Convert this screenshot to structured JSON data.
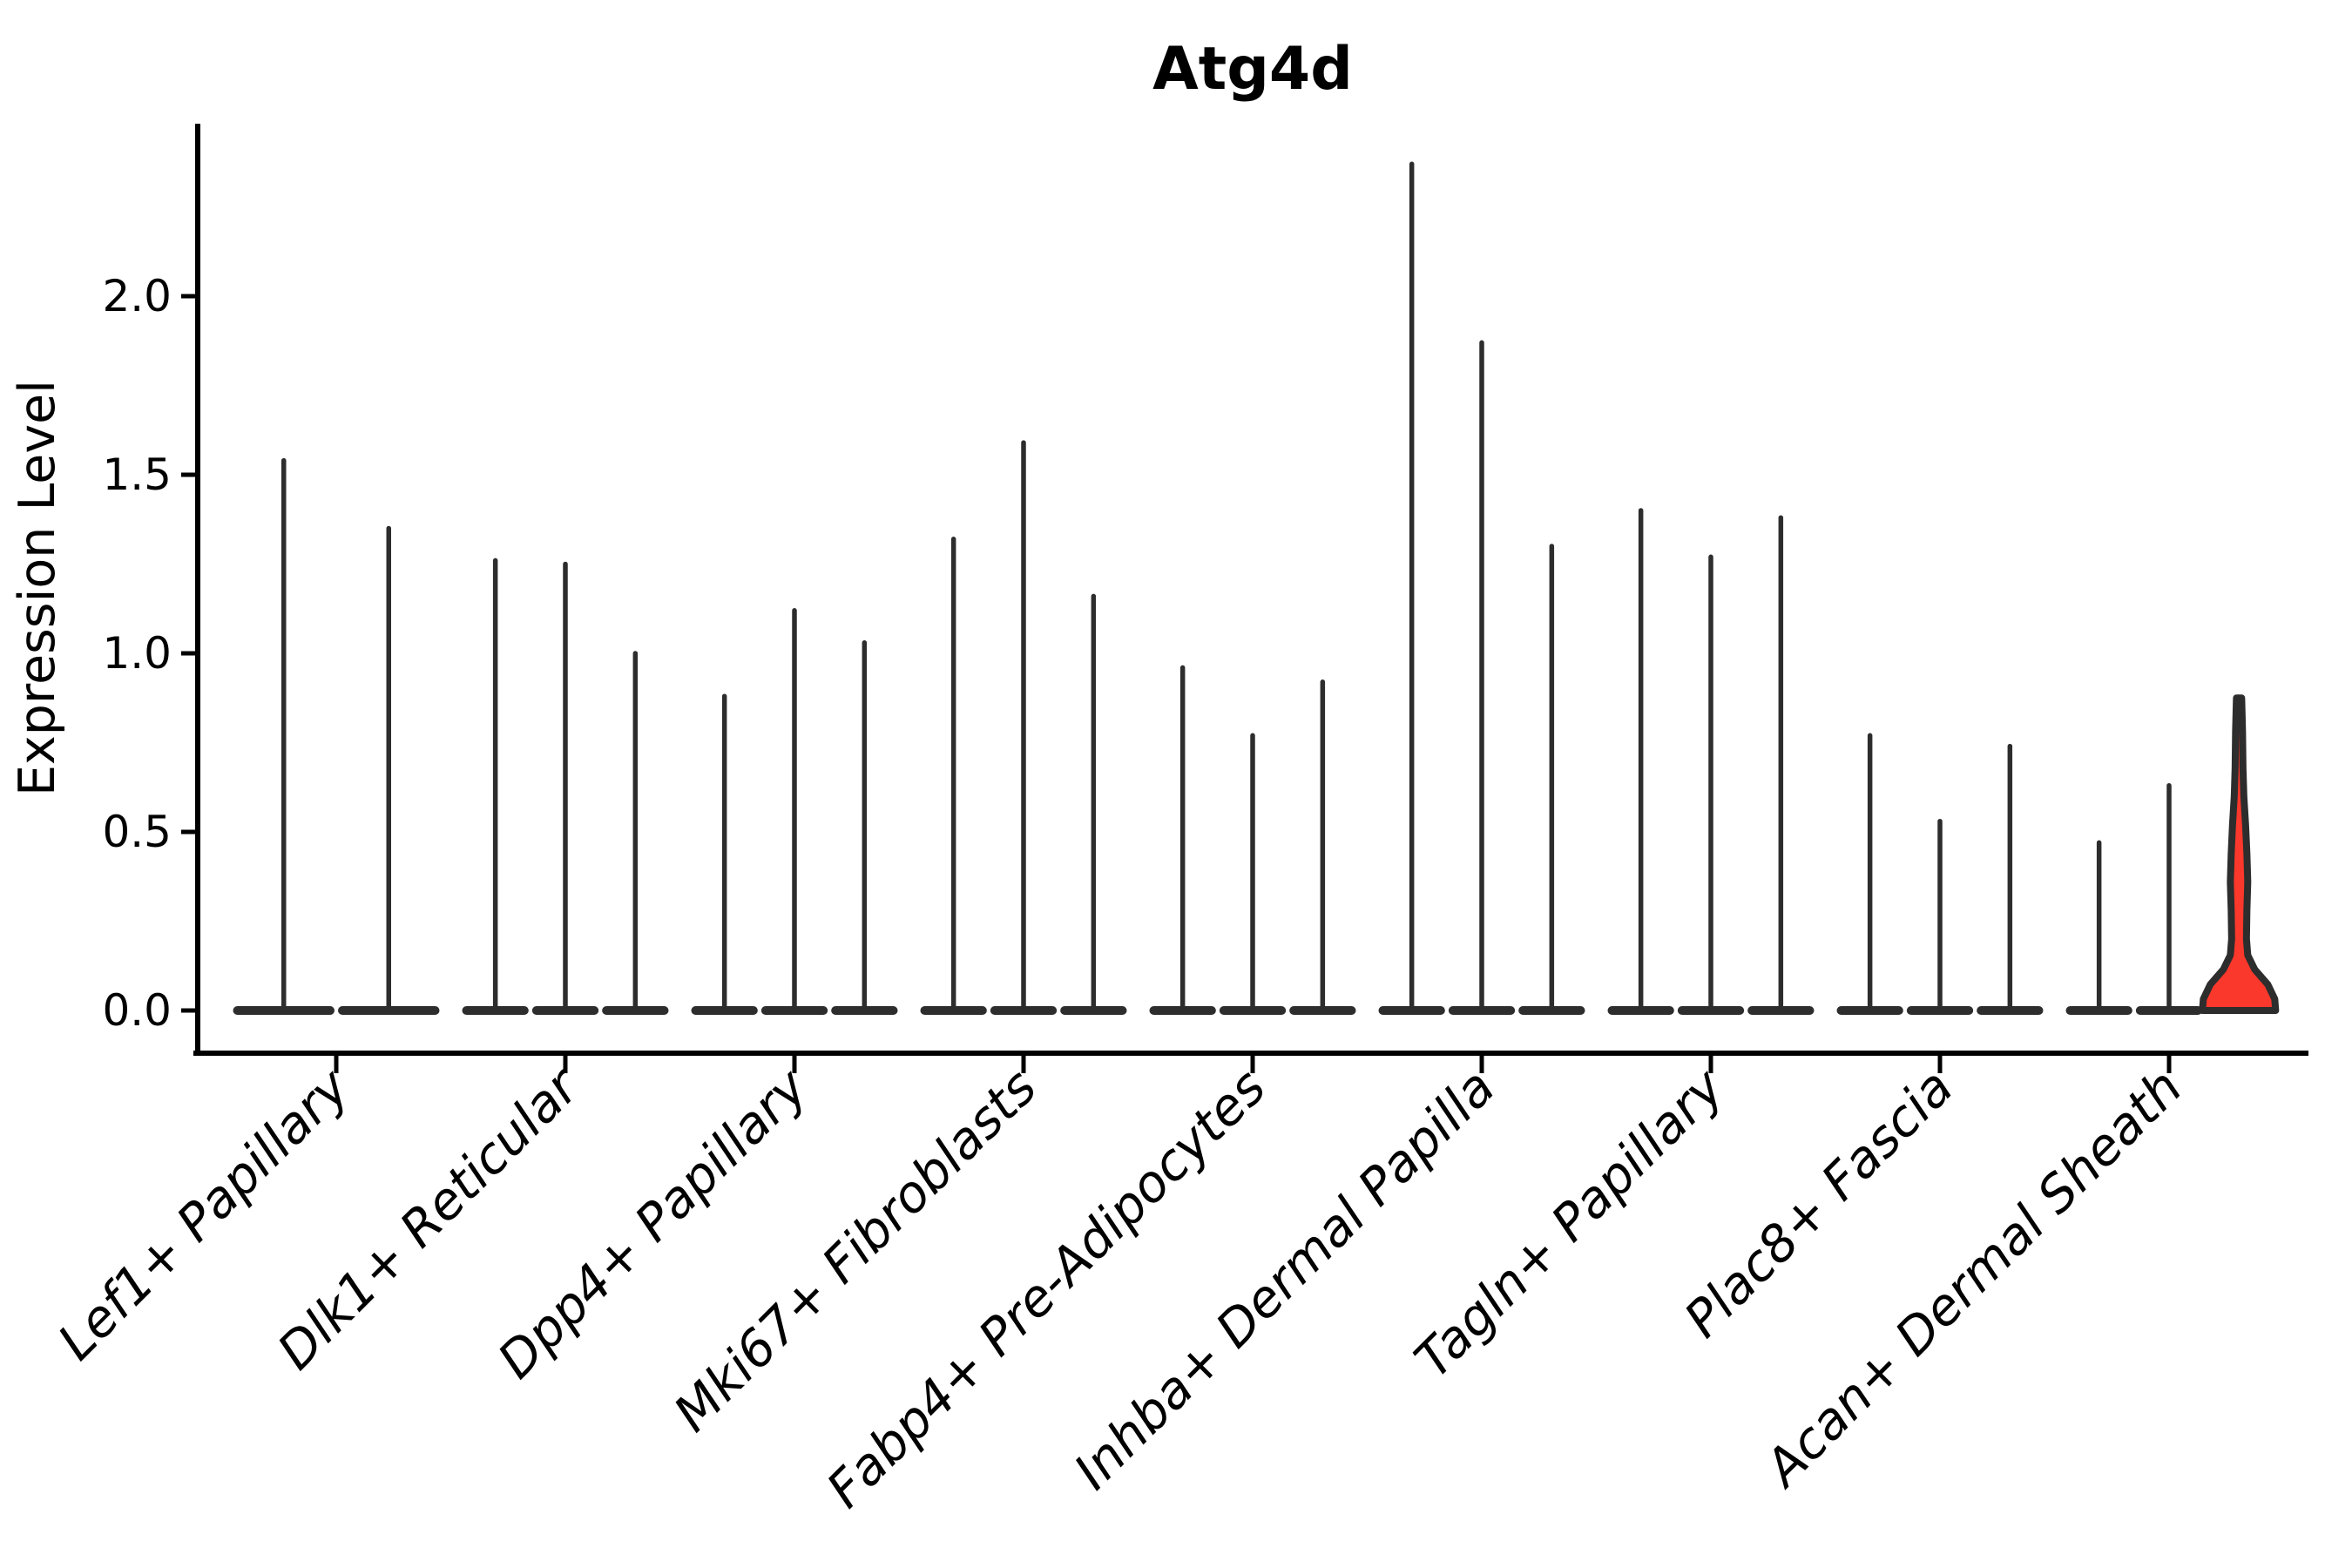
{
  "chart_data": {
    "type": "violin",
    "title": "Atg4d",
    "xlabel": "",
    "ylabel": "Expression Level",
    "ytick_labels": [
      "0.0",
      "0.5",
      "1.0",
      "1.5",
      "2.0"
    ],
    "ytick_values": [
      0.0,
      0.5,
      1.0,
      1.5,
      2.0
    ],
    "ylim": [
      0.0,
      2.49
    ],
    "grid": "off",
    "legend": "none",
    "categories": [
      "Lef1+ Papillary",
      "Dlk1+ Reticular",
      "Dpp4+ Papillary",
      "Mki67+ Fibroblasts",
      "Fabp4+ Pre-Adipocytes",
      "Inhba+ Dermal Papilla",
      "Tagln+ Papillary",
      "Plac8+ Fascia",
      "Acan+ Dermal Sheath"
    ],
    "groups": [
      {
        "category": "Lef1+ Papillary",
        "violin_max_values": [
          1.54,
          1.35
        ]
      },
      {
        "category": "Dlk1+ Reticular",
        "violin_max_values": [
          1.26,
          1.25,
          1.0
        ]
      },
      {
        "category": "Dpp4+ Papillary",
        "violin_max_values": [
          0.88,
          1.12,
          1.03
        ]
      },
      {
        "category": "Mki67+ Fibroblasts",
        "violin_max_values": [
          1.32,
          1.59,
          1.16
        ]
      },
      {
        "category": "Fabp4+ Pre-Adipocytes",
        "violin_max_values": [
          0.96,
          0.77,
          0.92
        ]
      },
      {
        "category": "Inhba+ Dermal Papilla",
        "violin_max_values": [
          2.37,
          1.87,
          1.3
        ]
      },
      {
        "category": "Tagln+ Papillary",
        "violin_max_values": [
          1.4,
          1.27,
          1.38
        ]
      },
      {
        "category": "Plac8+ Fascia",
        "violin_max_values": [
          0.77,
          0.53,
          0.74
        ]
      },
      {
        "category": "Acan+ Dermal Sheath",
        "violin_max_values": [
          0.47,
          0.63,
          0.875
        ]
      }
    ],
    "highlight_violin": {
      "category": "Acan+ Dermal Sheath",
      "position_in_group": 3,
      "max_value": 0.875,
      "profile_value_halfwidth": [
        [
          0.875,
          3
        ],
        [
          0.78,
          4
        ],
        [
          0.68,
          4.5
        ],
        [
          0.6,
          5.5
        ],
        [
          0.52,
          7.5
        ],
        [
          0.44,
          9
        ],
        [
          0.36,
          10
        ],
        [
          0.28,
          9
        ],
        [
          0.2,
          8.5
        ],
        [
          0.155,
          10
        ],
        [
          0.115,
          18
        ],
        [
          0.073,
          33
        ],
        [
          0.032,
          41
        ],
        [
          0.0,
          42
        ]
      ]
    },
    "colors": {
      "violin_dark": "#2d2d2d",
      "highlight_fill": "#fa382b",
      "axis": "#000000",
      "background": "#ffffff"
    }
  }
}
